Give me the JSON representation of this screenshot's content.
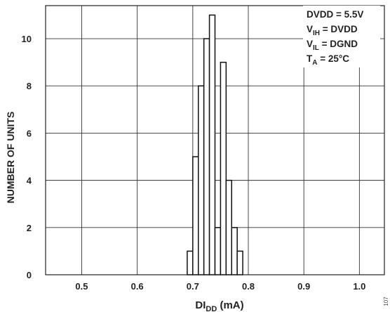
{
  "chart_data": {
    "type": "bar",
    "xlabel": {
      "main": "DI",
      "sub": "DD",
      "unit": " (mA)"
    },
    "ylabel": "NUMBER OF UNITS",
    "xlim": [
      0.435,
      1.045
    ],
    "ylim": [
      0,
      11.4
    ],
    "x_ticks": [
      0.5,
      0.6,
      0.7,
      0.8,
      0.9,
      1.0
    ],
    "x_tick_labels": [
      "0.5",
      "0.6",
      "0.7",
      "0.8",
      "0.9",
      "1.0"
    ],
    "y_ticks": [
      0,
      2,
      4,
      6,
      8,
      10
    ],
    "y_tick_labels": [
      "0",
      "2",
      "4",
      "6",
      "8",
      "10"
    ],
    "bin_width": 0.01,
    "bins": [
      {
        "x": 0.69,
        "count": 1
      },
      {
        "x": 0.7,
        "count": 5
      },
      {
        "x": 0.71,
        "count": 8
      },
      {
        "x": 0.72,
        "count": 10
      },
      {
        "x": 0.73,
        "count": 11
      },
      {
        "x": 0.74,
        "count": 2
      },
      {
        "x": 0.75,
        "count": 9
      },
      {
        "x": 0.76,
        "count": 4
      },
      {
        "x": 0.77,
        "count": 2
      },
      {
        "x": 0.78,
        "count": 1
      }
    ],
    "grid": true,
    "conditions": [
      {
        "main": "DVDD = 5.5V"
      },
      {
        "main": "V",
        "sub": "IH",
        "rest": " = DVDD"
      },
      {
        "main": "V",
        "sub": "IL",
        "rest": " = DGND"
      },
      {
        "main": "T",
        "sub": "A",
        "rest": " = 25°C"
      }
    ],
    "legend_placement": "top-right"
  },
  "figure_number": "107"
}
